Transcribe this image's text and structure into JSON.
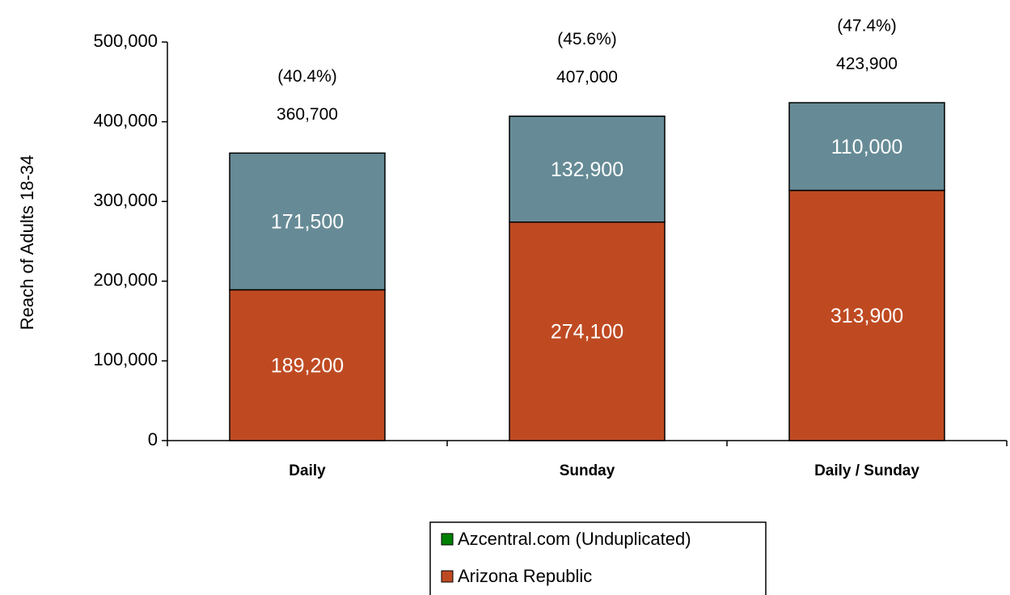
{
  "chart_data": {
    "type": "stacked-bar",
    "y_label": "Reach of Adults 18-34",
    "categories": [
      "Daily",
      "Sunday",
      "Daily / Sunday"
    ],
    "series": [
      {
        "name": "Arizona Republic",
        "color": "#bf4a22",
        "values": [
          189200,
          274100,
          313900
        ],
        "value_labels": [
          "189,200",
          "274,100",
          "313,900"
        ]
      },
      {
        "name": "Azcentral.com (Unduplicated)",
        "color": "#668b96",
        "legend_color": "#008000",
        "values": [
          171500,
          132900,
          110000
        ],
        "value_labels": [
          "171,500",
          "132,900",
          "110,000"
        ]
      }
    ],
    "totals": [
      360700,
      407000,
      423900
    ],
    "total_labels": [
      "360,700",
      "407,000",
      "423,900"
    ],
    "shares": [
      40.4,
      45.6,
      47.4
    ],
    "share_labels": [
      "(40.4%)",
      "(45.6%)",
      "(47.4%)"
    ],
    "ylim": [
      0,
      500000
    ],
    "yticks": [
      0,
      {
        "value": 100000,
        "label": "100,000"
      },
      {
        "value": 200000,
        "label": "200,000"
      },
      {
        "value": 300000,
        "label": "300,000"
      },
      {
        "value": 400000,
        "label": "400,000"
      },
      {
        "value": 500000,
        "label": "500,000"
      }
    ],
    "grid": false
  }
}
